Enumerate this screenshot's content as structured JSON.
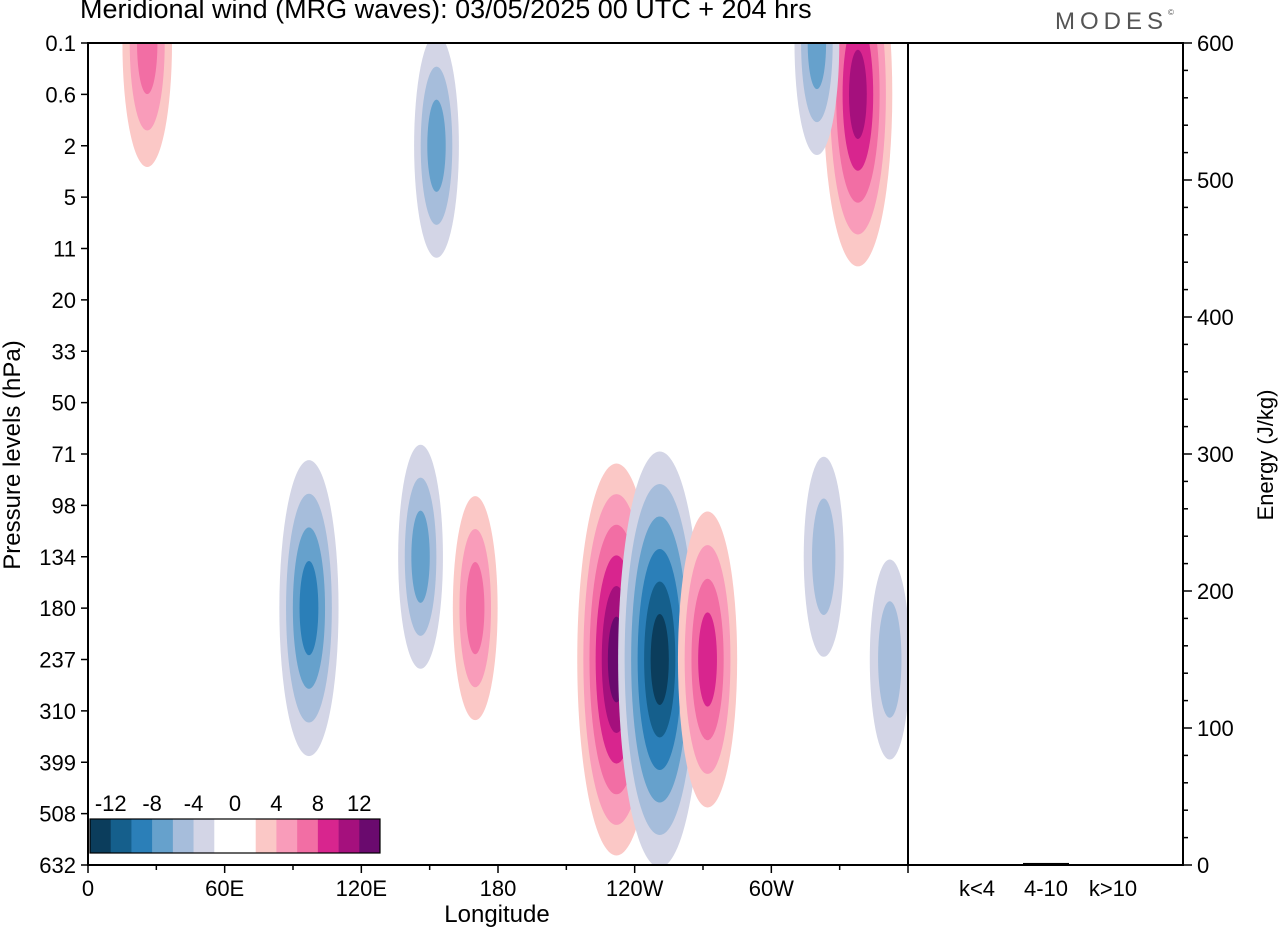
{
  "header": {
    "title": "Meridional wind (MRG waves):  03/05/2025  00 UTC  + 204 hrs",
    "logo": "MODES"
  },
  "chart_data": [
    {
      "type": "heatmap",
      "title": "Meridional wind (MRG waves):  03/05/2025  00 UTC  + 204 hrs",
      "xlabel": "Longitude",
      "ylabel": "Pressure levels (hPa)",
      "x_ticks": [
        "0",
        "60E",
        "120E",
        "180",
        "120W",
        "60W"
      ],
      "y_ticks": [
        "0.1",
        "0.6",
        "2",
        "5",
        "11",
        "20",
        "33",
        "50",
        "71",
        "98",
        "134",
        "180",
        "237",
        "310",
        "399",
        "508",
        "632"
      ],
      "xlim_deg_east": [
        0,
        360
      ],
      "colorbar": {
        "labels": [
          "-12",
          "-8",
          "-4",
          "0",
          "4",
          "8",
          "12"
        ],
        "colors": [
          "#0b3d5c",
          "#155f8c",
          "#2b7fb8",
          "#66a1cc",
          "#a6bddb",
          "#d3d5e6",
          "#ffffff",
          "#ffffff",
          "#fbc8c6",
          "#f99cba",
          "#f26ea4",
          "#d8258e",
          "#a5107d",
          "#6a0a6e"
        ]
      },
      "features": [
        {
          "sign": "neg",
          "lon": 97,
          "level": "180",
          "magnitude": 9
        },
        {
          "sign": "neg",
          "lon": 146,
          "level": "134",
          "magnitude": 6
        },
        {
          "sign": "pos",
          "lon": 232,
          "level": "237",
          "magnitude": 13
        },
        {
          "sign": "neg",
          "lon": 251,
          "level": "237",
          "magnitude": 14
        },
        {
          "sign": "pos",
          "lon": 272,
          "level": "237",
          "magnitude": 9
        },
        {
          "sign": "pos",
          "lon": 170,
          "level": "180",
          "magnitude": 6
        },
        {
          "sign": "neg",
          "lon": 323,
          "level": "134",
          "magnitude": 5
        },
        {
          "sign": "neg",
          "lon": 352,
          "level": "237",
          "magnitude": 5
        },
        {
          "sign": "pos",
          "lon": 338,
          "level": "0.6",
          "magnitude": 11
        },
        {
          "sign": "neg",
          "lon": 153,
          "level": "2",
          "magnitude": 6
        },
        {
          "sign": "pos",
          "lon": 26,
          "level": "0.1",
          "magnitude": 7
        },
        {
          "sign": "neg",
          "lon": 320,
          "level": "0.1",
          "magnitude": 6
        }
      ]
    },
    {
      "type": "bar",
      "ylabel": "Energy (J/kg)",
      "categories": [
        "k<4",
        "4-10",
        "k>10"
      ],
      "values": [
        0.5,
        1.5,
        0.5
      ],
      "ylim": [
        0,
        600
      ],
      "y_ticks": [
        "0",
        "100",
        "200",
        "300",
        "400",
        "500",
        "600"
      ]
    }
  ]
}
